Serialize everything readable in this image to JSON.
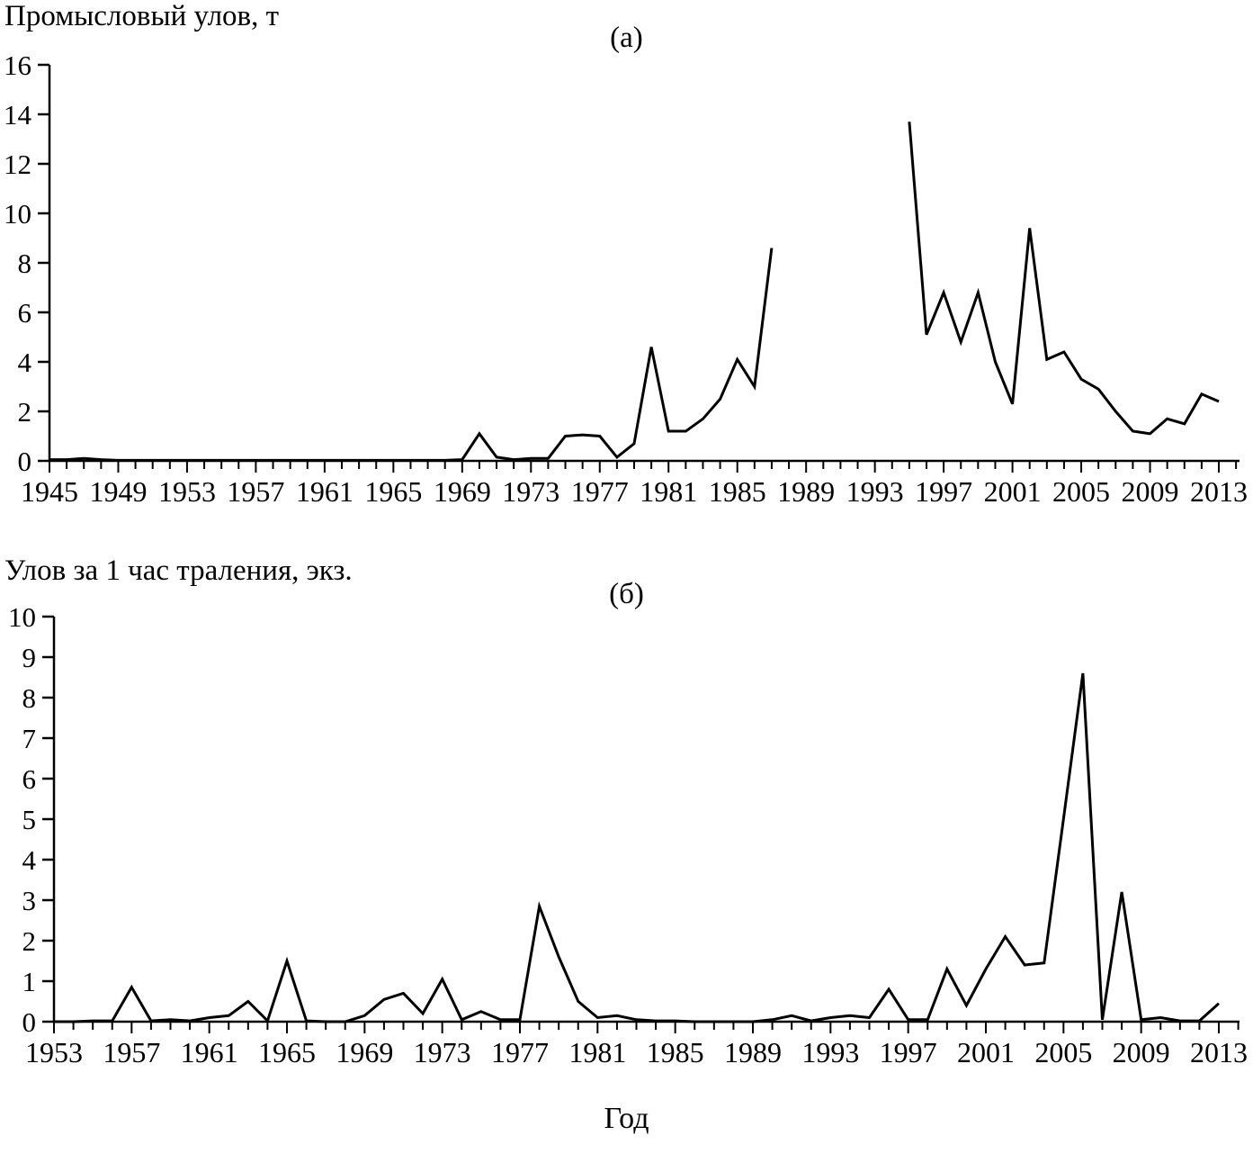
{
  "figure": {
    "xlabel": "Год"
  },
  "chart_data": [
    {
      "type": "line",
      "panel_label": "(а)",
      "axis_title": "Промысловый улов, т",
      "ylabel": "Промысловый улов, т",
      "xlabel": "Год",
      "ylim": [
        0,
        16
      ],
      "ytick_step": 2,
      "xlabel_every": 4,
      "line_color": "#000000",
      "years": [
        1945,
        1946,
        1947,
        1948,
        1949,
        1950,
        1951,
        1952,
        1953,
        1954,
        1955,
        1956,
        1957,
        1958,
        1959,
        1960,
        1961,
        1962,
        1963,
        1964,
        1965,
        1966,
        1967,
        1968,
        1969,
        1970,
        1971,
        1972,
        1973,
        1974,
        1975,
        1976,
        1977,
        1978,
        1979,
        1980,
        1981,
        1982,
        1983,
        1984,
        1985,
        1986,
        1987,
        1988,
        1989,
        1990,
        1991,
        1992,
        1993,
        1994,
        1995,
        1996,
        1997,
        1998,
        1999,
        2000,
        2001,
        2002,
        2003,
        2004,
        2005,
        2006,
        2007,
        2008,
        2009,
        2010,
        2011,
        2012,
        2013
      ],
      "values": [
        0.05,
        0.05,
        0.1,
        0.05,
        0.02,
        0.02,
        0.02,
        0.02,
        0.02,
        0.02,
        0.02,
        0.02,
        0.02,
        0.02,
        0.02,
        0.02,
        0.02,
        0.02,
        0.02,
        0.02,
        0.02,
        0.02,
        0.02,
        0.02,
        0.05,
        1.1,
        0.15,
        0.05,
        0.1,
        0.1,
        1.0,
        1.05,
        1.0,
        0.15,
        0.7,
        4.6,
        1.2,
        1.2,
        1.7,
        2.5,
        4.1,
        3.0,
        8.6,
        null,
        null,
        null,
        null,
        null,
        null,
        null,
        13.7,
        5.1,
        6.8,
        4.8,
        6.8,
        4.0,
        2.3,
        9.4,
        4.1,
        4.4,
        3.3,
        2.9,
        2.0,
        1.2,
        1.1,
        1.7,
        1.5,
        2.7,
        2.4
      ],
      "ytick_labels": [
        "0",
        "2",
        "4",
        "6",
        "8",
        "10",
        "12",
        "14",
        "16"
      ],
      "xtick_labels": [
        "1945",
        "1949",
        "1953",
        "1957",
        "1961",
        "1965",
        "1969",
        "1973",
        "1977",
        "1981",
        "1985",
        "1989",
        "1993",
        "1997",
        "2001",
        "2005",
        "2009",
        "2013"
      ]
    },
    {
      "type": "line",
      "panel_label": "(б)",
      "axis_title": "Улов за 1 час траления, экз.",
      "ylabel": "Улов за 1 час траления, экз.",
      "xlabel": "Год",
      "ylim": [
        0,
        10
      ],
      "ytick_step": 1,
      "xlabel_every": 4,
      "line_color": "#000000",
      "years": [
        1953,
        1954,
        1955,
        1956,
        1957,
        1958,
        1959,
        1960,
        1961,
        1962,
        1963,
        1964,
        1965,
        1966,
        1967,
        1968,
        1969,
        1970,
        1971,
        1972,
        1973,
        1974,
        1975,
        1976,
        1977,
        1978,
        1979,
        1980,
        1981,
        1982,
        1983,
        1984,
        1985,
        1986,
        1987,
        1988,
        1989,
        1990,
        1991,
        1992,
        1993,
        1994,
        1995,
        1996,
        1997,
        1998,
        1999,
        2000,
        2001,
        2002,
        2003,
        2004,
        2005,
        2006,
        2007,
        2008,
        2009,
        2010,
        2011,
        2012,
        2013
      ],
      "values": [
        0,
        0,
        0.02,
        0.02,
        0.85,
        0.02,
        0.05,
        0.02,
        0.1,
        0.15,
        0.5,
        0.02,
        1.5,
        0.02,
        0,
        0,
        0.15,
        0.55,
        0.7,
        0.2,
        1.05,
        0.05,
        0.25,
        0.05,
        0.05,
        2.85,
        1.6,
        0.5,
        0.1,
        0.15,
        0.05,
        0.02,
        0.02,
        0,
        0,
        0,
        0,
        0.05,
        0.15,
        0.02,
        0.1,
        0.15,
        0.1,
        0.8,
        0.05,
        0.05,
        1.3,
        0.4,
        1.3,
        2.1,
        1.4,
        1.45,
        5.0,
        8.6,
        0.05,
        3.2,
        0.05,
        0.1,
        0.02,
        0.02,
        0.45
      ],
      "ytick_labels": [
        "0",
        "1",
        "2",
        "3",
        "4",
        "5",
        "6",
        "7",
        "8",
        "9",
        "10"
      ],
      "xtick_labels": [
        "1953",
        "1957",
        "1961",
        "1965",
        "1969",
        "1973",
        "1977",
        "1981",
        "1985",
        "1989",
        "1993",
        "1997",
        "2001",
        "2005",
        "2009",
        "2013"
      ]
    }
  ]
}
